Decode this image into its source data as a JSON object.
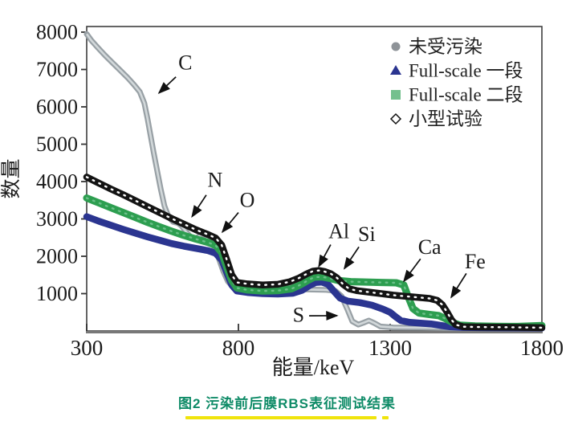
{
  "figure": {
    "caption": "图2  污染前后膜RBS表征测试结果",
    "caption_color": "#0e8b67",
    "underline_color": "#f0e40c"
  },
  "chart_data": {
    "type": "scatter",
    "title": "",
    "xlabel": "能量/keV",
    "ylabel": "数量",
    "xlim": [
      300,
      1800
    ],
    "ylim": [
      0,
      8000
    ],
    "x_ticks": [
      300,
      800,
      1300,
      1800
    ],
    "y_ticks": [
      1000,
      2000,
      3000,
      4000,
      5000,
      6000,
      7000,
      8000
    ],
    "grid": false,
    "legend_position": "top-right",
    "axis_color": "#3f3f3f",
    "text_color": "#1a1a1a",
    "series": [
      {
        "name": "未受污染",
        "marker": "circle",
        "color": "#98a0a5",
        "core_color": "#d2d8da",
        "legend_color": "#8e9398",
        "points": [
          [
            300,
            7950
          ],
          [
            315,
            7780
          ],
          [
            335,
            7600
          ],
          [
            360,
            7380
          ],
          [
            385,
            7180
          ],
          [
            410,
            6980
          ],
          [
            435,
            6780
          ],
          [
            455,
            6600
          ],
          [
            475,
            6400
          ],
          [
            490,
            6100
          ],
          [
            500,
            5700
          ],
          [
            510,
            5250
          ],
          [
            520,
            4800
          ],
          [
            532,
            4300
          ],
          [
            544,
            3800
          ],
          [
            556,
            3350
          ],
          [
            570,
            3050
          ],
          [
            585,
            2920
          ],
          [
            600,
            2890
          ],
          [
            612,
            2820
          ],
          [
            628,
            2650
          ],
          [
            645,
            2500
          ],
          [
            660,
            2470
          ],
          [
            675,
            2570
          ],
          [
            690,
            2560
          ],
          [
            705,
            2430
          ],
          [
            720,
            2250
          ],
          [
            735,
            1950
          ],
          [
            750,
            1600
          ],
          [
            765,
            1330
          ],
          [
            780,
            1200
          ],
          [
            810,
            1160
          ],
          [
            870,
            1140
          ],
          [
            950,
            1120
          ],
          [
            1030,
            1110
          ],
          [
            1090,
            1100
          ],
          [
            1120,
            1070
          ],
          [
            1140,
            930
          ],
          [
            1160,
            560
          ],
          [
            1175,
            260
          ],
          [
            1195,
            170
          ],
          [
            1215,
            230
          ],
          [
            1230,
            280
          ],
          [
            1248,
            210
          ],
          [
            1268,
            120
          ],
          [
            1310,
            95
          ],
          [
            1400,
            85
          ],
          [
            1500,
            75
          ],
          [
            1650,
            70
          ],
          [
            1800,
            65
          ]
        ]
      },
      {
        "name": "Full-scale 一段",
        "marker": "triangle",
        "color": "#2b3590",
        "legend_color": "#2b3590",
        "points": [
          [
            300,
            3060
          ],
          [
            340,
            2940
          ],
          [
            380,
            2830
          ],
          [
            420,
            2720
          ],
          [
            460,
            2620
          ],
          [
            500,
            2520
          ],
          [
            540,
            2430
          ],
          [
            580,
            2340
          ],
          [
            620,
            2270
          ],
          [
            660,
            2210
          ],
          [
            700,
            2150
          ],
          [
            725,
            2080
          ],
          [
            745,
            1900
          ],
          [
            762,
            1550
          ],
          [
            778,
            1230
          ],
          [
            795,
            1070
          ],
          [
            830,
            1030
          ],
          [
            880,
            1000
          ],
          [
            930,
            990
          ],
          [
            980,
            1010
          ],
          [
            1010,
            1090
          ],
          [
            1035,
            1220
          ],
          [
            1055,
            1300
          ],
          [
            1075,
            1310
          ],
          [
            1095,
            1250
          ],
          [
            1115,
            1060
          ],
          [
            1135,
            880
          ],
          [
            1160,
            800
          ],
          [
            1200,
            760
          ],
          [
            1240,
            690
          ],
          [
            1275,
            590
          ],
          [
            1300,
            500
          ],
          [
            1318,
            380
          ],
          [
            1335,
            280
          ],
          [
            1365,
            230
          ],
          [
            1400,
            210
          ],
          [
            1435,
            190
          ],
          [
            1465,
            150
          ],
          [
            1495,
            115
          ],
          [
            1540,
            95
          ],
          [
            1620,
            85
          ],
          [
            1800,
            80
          ]
        ]
      },
      {
        "name": "Full-scale 二段",
        "marker": "square",
        "color": "#2d9e50",
        "texture_color": "#6cc08a",
        "legend_color": "#74c08e",
        "points": [
          [
            300,
            3560
          ],
          [
            340,
            3430
          ],
          [
            380,
            3300
          ],
          [
            420,
            3170
          ],
          [
            460,
            3040
          ],
          [
            500,
            2910
          ],
          [
            540,
            2790
          ],
          [
            580,
            2670
          ],
          [
            620,
            2560
          ],
          [
            660,
            2460
          ],
          [
            700,
            2370
          ],
          [
            725,
            2290
          ],
          [
            745,
            2100
          ],
          [
            762,
            1700
          ],
          [
            778,
            1350
          ],
          [
            795,
            1150
          ],
          [
            830,
            1100
          ],
          [
            880,
            1070
          ],
          [
            930,
            1080
          ],
          [
            975,
            1130
          ],
          [
            1005,
            1240
          ],
          [
            1030,
            1360
          ],
          [
            1050,
            1440
          ],
          [
            1075,
            1450
          ],
          [
            1100,
            1410
          ],
          [
            1130,
            1350
          ],
          [
            1170,
            1320
          ],
          [
            1220,
            1310
          ],
          [
            1270,
            1300
          ],
          [
            1320,
            1290
          ],
          [
            1345,
            1230
          ],
          [
            1360,
            900
          ],
          [
            1375,
            600
          ],
          [
            1395,
            480
          ],
          [
            1430,
            440
          ],
          [
            1460,
            410
          ],
          [
            1480,
            340
          ],
          [
            1505,
            230
          ],
          [
            1530,
            155
          ],
          [
            1580,
            135
          ],
          [
            1650,
            125
          ],
          [
            1720,
            120
          ],
          [
            1800,
            145
          ]
        ]
      },
      {
        "name": "小型试验",
        "marker": "diamond-open",
        "color": "#141414",
        "texture_color": "#ffffff",
        "legend_color": "#141414",
        "points": [
          [
            300,
            4120
          ],
          [
            340,
            3960
          ],
          [
            380,
            3800
          ],
          [
            420,
            3650
          ],
          [
            460,
            3490
          ],
          [
            500,
            3330
          ],
          [
            540,
            3170
          ],
          [
            580,
            3010
          ],
          [
            620,
            2860
          ],
          [
            660,
            2710
          ],
          [
            700,
            2580
          ],
          [
            725,
            2490
          ],
          [
            745,
            2300
          ],
          [
            762,
            1900
          ],
          [
            778,
            1500
          ],
          [
            795,
            1300
          ],
          [
            830,
            1260
          ],
          [
            880,
            1230
          ],
          [
            930,
            1250
          ],
          [
            970,
            1320
          ],
          [
            1000,
            1420
          ],
          [
            1025,
            1530
          ],
          [
            1045,
            1600
          ],
          [
            1065,
            1620
          ],
          [
            1085,
            1590
          ],
          [
            1105,
            1530
          ],
          [
            1125,
            1420
          ],
          [
            1145,
            1250
          ],
          [
            1165,
            1130
          ],
          [
            1190,
            1080
          ],
          [
            1230,
            1040
          ],
          [
            1270,
            1000
          ],
          [
            1310,
            960
          ],
          [
            1350,
            930
          ],
          [
            1390,
            900
          ],
          [
            1430,
            870
          ],
          [
            1455,
            820
          ],
          [
            1472,
            700
          ],
          [
            1488,
            500
          ],
          [
            1502,
            300
          ],
          [
            1516,
            170
          ],
          [
            1540,
            115
          ],
          [
            1600,
            105
          ],
          [
            1700,
            98
          ],
          [
            1800,
            88
          ]
        ]
      }
    ],
    "annotations": [
      {
        "label": "C",
        "text_at": [
          625,
          7180
        ],
        "arrow_from": [
          594,
          6800
        ],
        "arrow_to": [
          538,
          6370
        ]
      },
      {
        "label": "N",
        "text_at": [
          723,
          4040
        ],
        "arrow_from": [
          694,
          3640
        ],
        "arrow_to": [
          647,
          3060
        ]
      },
      {
        "label": "O",
        "text_at": [
          829,
          3510
        ],
        "arrow_from": [
          800,
          3170
        ],
        "arrow_to": [
          747,
          2650
        ]
      },
      {
        "label": "Al",
        "text_at": [
          1131,
          2670
        ],
        "arrow_from": [
          1104,
          2310
        ],
        "arrow_to": [
          1065,
          1730
        ]
      },
      {
        "label": "Si",
        "text_at": [
          1223,
          2590
        ],
        "arrow_from": [
          1197,
          2250
        ],
        "arrow_to": [
          1149,
          1670
        ]
      },
      {
        "label": "Ca",
        "text_at": [
          1430,
          2250
        ],
        "arrow_from": [
          1400,
          1930
        ],
        "arrow_to": [
          1345,
          1330
        ]
      },
      {
        "label": "Fe",
        "text_at": [
          1580,
          1860
        ],
        "arrow_from": [
          1551,
          1540
        ],
        "arrow_to": [
          1501,
          900
        ]
      },
      {
        "label": "S",
        "text_at": [
          998,
          430
        ],
        "arrow_from": [
          1033,
          406
        ],
        "arrow_to": [
          1125,
          410
        ]
      }
    ]
  }
}
